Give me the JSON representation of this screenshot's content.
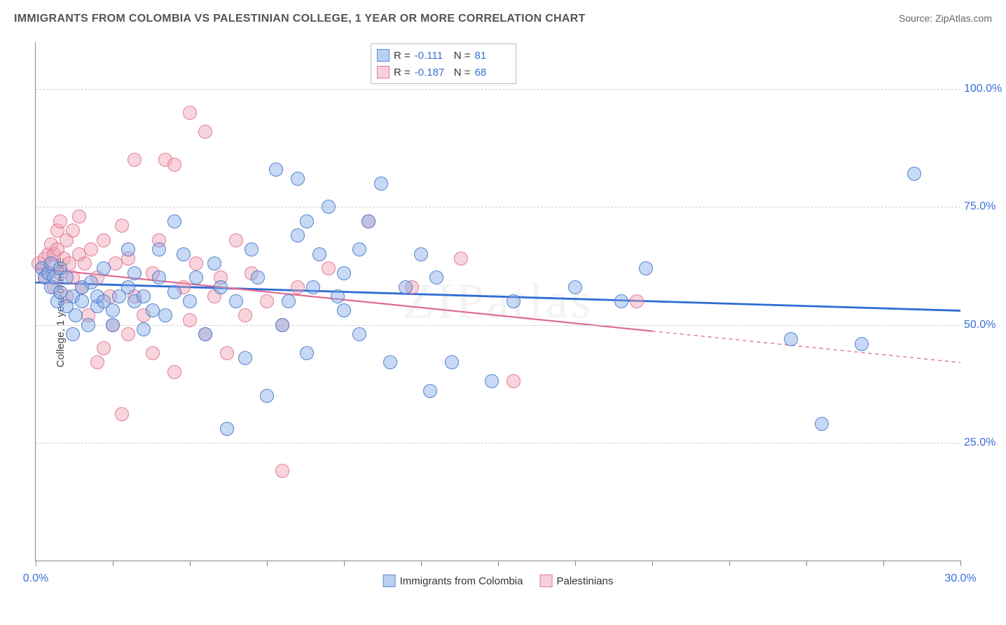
{
  "title": "IMMIGRANTS FROM COLOMBIA VS PALESTINIAN COLLEGE, 1 YEAR OR MORE CORRELATION CHART",
  "source_label": "Source: ",
  "source_name": "ZipAtlas.com",
  "watermark": "ZIPatlas",
  "ylabel": "College, 1 year or more",
  "chart": {
    "type": "scatter",
    "xlim": [
      0,
      30
    ],
    "ylim": [
      0,
      110
    ],
    "x_ticks": [
      0,
      2.5,
      5,
      7.5,
      10,
      12.5,
      15,
      17.5,
      20,
      22.5,
      25,
      27.5,
      30
    ],
    "x_tick_labels": {
      "0": "0.0%",
      "30": "30.0%"
    },
    "y_gridlines": [
      25,
      50,
      75,
      100
    ],
    "y_tick_labels": {
      "25": "25.0%",
      "50": "50.0%",
      "75": "75.0%",
      "100": "100.0%"
    },
    "background_color": "#ffffff",
    "grid_color": "#cccccc",
    "axis_color": "#888888",
    "label_color_blue": "#3b6fd8",
    "dot_radius": 9,
    "series": [
      {
        "name": "Immigrants from Colombia",
        "key": "colombia",
        "color_fill": "rgba(130,170,230,0.45)",
        "color_stroke": "#5a8ad6",
        "R": "-0.111",
        "N": "81",
        "trend": {
          "y_at_x0": 59,
          "y_at_x30": 53,
          "solid_until_x": 30,
          "width": 2.8
        },
        "points": [
          [
            0.2,
            62
          ],
          [
            0.3,
            60
          ],
          [
            0.4,
            61
          ],
          [
            0.5,
            63
          ],
          [
            0.5,
            58
          ],
          [
            0.6,
            60
          ],
          [
            0.7,
            55
          ],
          [
            0.8,
            62
          ],
          [
            0.8,
            57
          ],
          [
            1.0,
            54
          ],
          [
            1.0,
            60
          ],
          [
            1.2,
            56
          ],
          [
            1.2,
            48
          ],
          [
            1.3,
            52
          ],
          [
            1.5,
            58
          ],
          [
            1.5,
            55
          ],
          [
            1.7,
            50
          ],
          [
            1.8,
            59
          ],
          [
            2.0,
            54
          ],
          [
            2.0,
            56
          ],
          [
            2.2,
            62
          ],
          [
            2.2,
            55
          ],
          [
            2.5,
            50
          ],
          [
            2.5,
            53
          ],
          [
            2.7,
            56
          ],
          [
            3.0,
            66
          ],
          [
            3.0,
            58
          ],
          [
            3.2,
            55
          ],
          [
            3.2,
            61
          ],
          [
            3.5,
            49
          ],
          [
            3.5,
            56
          ],
          [
            3.8,
            53
          ],
          [
            4.0,
            66
          ],
          [
            4.0,
            60
          ],
          [
            4.2,
            52
          ],
          [
            4.5,
            72
          ],
          [
            4.5,
            57
          ],
          [
            4.8,
            65
          ],
          [
            5.0,
            55
          ],
          [
            5.2,
            60
          ],
          [
            5.5,
            48
          ],
          [
            5.8,
            63
          ],
          [
            6.0,
            58
          ],
          [
            6.2,
            28
          ],
          [
            6.5,
            55
          ],
          [
            6.8,
            43
          ],
          [
            7.0,
            66
          ],
          [
            7.2,
            60
          ],
          [
            7.5,
            35
          ],
          [
            7.8,
            83
          ],
          [
            8.0,
            50
          ],
          [
            8.2,
            55
          ],
          [
            8.5,
            81
          ],
          [
            8.5,
            69
          ],
          [
            8.8,
            44
          ],
          [
            8.8,
            72
          ],
          [
            9.0,
            58
          ],
          [
            9.2,
            65
          ],
          [
            9.5,
            75
          ],
          [
            9.8,
            56
          ],
          [
            10.0,
            61
          ],
          [
            10.0,
            53
          ],
          [
            10.5,
            66
          ],
          [
            10.5,
            48
          ],
          [
            10.8,
            72
          ],
          [
            11.2,
            80
          ],
          [
            11.5,
            42
          ],
          [
            12.0,
            58
          ],
          [
            12.5,
            65
          ],
          [
            12.8,
            36
          ],
          [
            13.0,
            60
          ],
          [
            13.5,
            42
          ],
          [
            14.8,
            38
          ],
          [
            15.5,
            55
          ],
          [
            17.5,
            58
          ],
          [
            19.0,
            55
          ],
          [
            19.8,
            62
          ],
          [
            24.5,
            47
          ],
          [
            25.5,
            29
          ],
          [
            26.8,
            46
          ],
          [
            28.5,
            82
          ]
        ]
      },
      {
        "name": "Palestinians",
        "key": "palestinians",
        "color_fill": "rgba(240,160,180,0.45)",
        "color_stroke": "#d97a9a",
        "R": "-0.187",
        "N": "68",
        "trend": {
          "y_at_x0": 62,
          "y_at_x30": 42,
          "solid_until_x": 20,
          "width": 2.2
        },
        "points": [
          [
            0.1,
            63
          ],
          [
            0.2,
            62
          ],
          [
            0.3,
            64
          ],
          [
            0.3,
            60
          ],
          [
            0.4,
            61
          ],
          [
            0.4,
            65
          ],
          [
            0.5,
            63
          ],
          [
            0.5,
            67
          ],
          [
            0.6,
            65
          ],
          [
            0.6,
            58
          ],
          [
            0.7,
            66
          ],
          [
            0.7,
            70
          ],
          [
            0.8,
            61
          ],
          [
            0.8,
            72
          ],
          [
            0.9,
            64
          ],
          [
            1.0,
            68
          ],
          [
            1.0,
            56
          ],
          [
            1.1,
            63
          ],
          [
            1.2,
            70
          ],
          [
            1.2,
            60
          ],
          [
            1.4,
            65
          ],
          [
            1.4,
            73
          ],
          [
            1.5,
            58
          ],
          [
            1.6,
            63
          ],
          [
            1.7,
            52
          ],
          [
            1.8,
            66
          ],
          [
            2.0,
            42
          ],
          [
            2.0,
            60
          ],
          [
            2.2,
            45
          ],
          [
            2.2,
            68
          ],
          [
            2.4,
            56
          ],
          [
            2.5,
            50
          ],
          [
            2.6,
            63
          ],
          [
            2.8,
            71
          ],
          [
            2.8,
            31
          ],
          [
            3.0,
            48
          ],
          [
            3.0,
            64
          ],
          [
            3.2,
            85
          ],
          [
            3.2,
            56
          ],
          [
            3.5,
            52
          ],
          [
            3.8,
            61
          ],
          [
            3.8,
            44
          ],
          [
            4.0,
            68
          ],
          [
            4.2,
            85
          ],
          [
            4.5,
            84
          ],
          [
            4.5,
            40
          ],
          [
            4.8,
            58
          ],
          [
            5.0,
            95
          ],
          [
            5.0,
            51
          ],
          [
            5.2,
            63
          ],
          [
            5.5,
            48
          ],
          [
            5.5,
            91
          ],
          [
            5.8,
            56
          ],
          [
            6.0,
            60
          ],
          [
            6.2,
            44
          ],
          [
            6.5,
            68
          ],
          [
            6.8,
            52
          ],
          [
            7.0,
            61
          ],
          [
            7.5,
            55
          ],
          [
            8.0,
            50
          ],
          [
            8.0,
            19
          ],
          [
            8.5,
            58
          ],
          [
            9.5,
            62
          ],
          [
            10.8,
            72
          ],
          [
            12.2,
            58
          ],
          [
            13.8,
            64
          ],
          [
            15.5,
            38
          ],
          [
            19.5,
            55
          ]
        ]
      }
    ]
  },
  "legend": {
    "r_label": "R =",
    "n_label": "N ="
  }
}
